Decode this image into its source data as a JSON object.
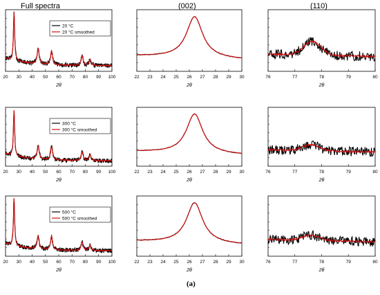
{
  "figure_label": "(a)",
  "columns": [
    "Full spectra",
    "(002)",
    "(110)"
  ],
  "x_label": "2θ",
  "colors": {
    "raw": "#000000",
    "smoothed": "#cc1111",
    "frame": "#000000",
    "legend_border": "#000000"
  },
  "chart_data": [
    {
      "type": "line",
      "row": 0,
      "col": 0,
      "xlim": [
        20,
        100
      ],
      "x_ticks": [
        20,
        30,
        40,
        50,
        60,
        70,
        80,
        90,
        100
      ],
      "xlabel": "2θ",
      "yscale": "log",
      "legend_position": "top-right",
      "peaks": [
        {
          "x": 26.4,
          "h": 1.0
        },
        {
          "x": 44.5,
          "h": 0.25
        },
        {
          "x": 54.6,
          "h": 0.22
        },
        {
          "x": 77.6,
          "h": 0.16
        },
        {
          "x": 83.6,
          "h": 0.1
        }
      ],
      "series": [
        {
          "name": "20 °C",
          "color": "#000000",
          "role": "raw"
        },
        {
          "name": "20 °C smoothed",
          "color": "#cc1111",
          "role": "smoothed"
        }
      ]
    },
    {
      "type": "line",
      "row": 0,
      "col": 1,
      "xlim": [
        22,
        30
      ],
      "x_ticks": [
        22,
        23,
        24,
        25,
        26,
        27,
        28,
        29,
        30
      ],
      "xlabel": "2θ",
      "peak_center": 26.4
    },
    {
      "type": "line",
      "row": 0,
      "col": 2,
      "xlim": [
        76,
        80
      ],
      "x_ticks": [
        76,
        77,
        78,
        79,
        80
      ],
      "xlabel": "2θ",
      "peak_center": 77.65,
      "peak_height": 0.5
    },
    {
      "type": "line",
      "row": 1,
      "col": 0,
      "xlim": [
        20,
        100
      ],
      "x_ticks": [
        20,
        30,
        40,
        50,
        60,
        70,
        80,
        90,
        100
      ],
      "xlabel": "2θ",
      "yscale": "log",
      "legend_position": "top-right",
      "peaks": [
        {
          "x": 26.4,
          "h": 1.0
        },
        {
          "x": 44.5,
          "h": 0.23
        },
        {
          "x": 54.6,
          "h": 0.22
        },
        {
          "x": 77.6,
          "h": 0.15
        },
        {
          "x": 83.6,
          "h": 0.1
        }
      ],
      "series": [
        {
          "name": "300 °C",
          "color": "#000000",
          "role": "raw"
        },
        {
          "name": "300 °C smoothed",
          "color": "#cc1111",
          "role": "smoothed"
        }
      ]
    },
    {
      "type": "line",
      "row": 1,
      "col": 1,
      "xlim": [
        22,
        30
      ],
      "x_ticks": [
        22,
        23,
        24,
        25,
        26,
        27,
        28,
        29,
        30
      ],
      "xlabel": "2θ",
      "peak_center": 26.4
    },
    {
      "type": "line",
      "row": 1,
      "col": 2,
      "xlim": [
        76,
        80
      ],
      "x_ticks": [
        76,
        77,
        78,
        79,
        80
      ],
      "xlabel": "2θ",
      "peak_center": 77.6,
      "peak_height": 0.38
    },
    {
      "type": "line",
      "row": 2,
      "col": 0,
      "xlim": [
        20,
        100
      ],
      "x_ticks": [
        20,
        30,
        40,
        50,
        60,
        70,
        80,
        90,
        100
      ],
      "xlabel": "2θ",
      "yscale": "log",
      "legend_position": "top-right",
      "peaks": [
        {
          "x": 26.4,
          "h": 1.0
        },
        {
          "x": 44.5,
          "h": 0.22
        },
        {
          "x": 54.6,
          "h": 0.22
        },
        {
          "x": 77.6,
          "h": 0.14
        },
        {
          "x": 83.6,
          "h": 0.09
        }
      ],
      "series": [
        {
          "name": "500 °C",
          "color": "#000000",
          "role": "raw"
        },
        {
          "name": "500 °C smoothed",
          "color": "#cc1111",
          "role": "smoothed"
        }
      ]
    },
    {
      "type": "line",
      "row": 2,
      "col": 1,
      "xlim": [
        22,
        30
      ],
      "x_ticks": [
        22,
        23,
        24,
        25,
        26,
        27,
        28,
        29,
        30
      ],
      "xlabel": "2θ",
      "peak_center": 26.4
    },
    {
      "type": "line",
      "row": 2,
      "col": 2,
      "xlim": [
        76,
        80
      ],
      "x_ticks": [
        76,
        77,
        78,
        79,
        80
      ],
      "xlabel": "2θ",
      "peak_center": 77.6,
      "peak_height": 0.36
    }
  ]
}
